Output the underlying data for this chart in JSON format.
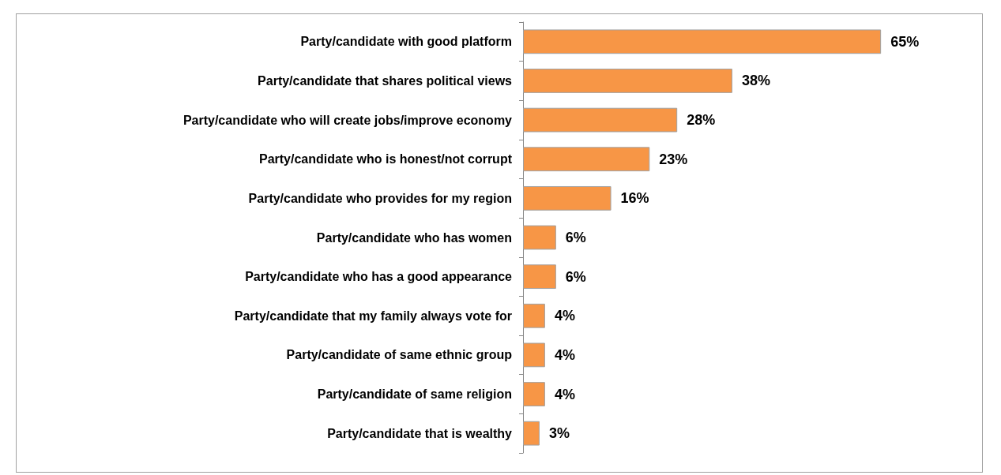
{
  "chart_data": {
    "type": "bar",
    "orientation": "horizontal",
    "categories": [
      "Party/candidate with good platform",
      "Party/candidate that shares political views",
      "Party/candidate who will create jobs/improve economy",
      "Party/candidate who is honest/not corrupt",
      "Party/candidate who provides for my region",
      "Party/candidate who has women",
      "Party/candidate who has a good appearance",
      "Party/candidate that my family always vote for",
      "Party/candidate of same ethnic group",
      "Party/candidate of same religion",
      "Party/candidate that is wealthy"
    ],
    "values": [
      65,
      38,
      28,
      23,
      16,
      6,
      6,
      4,
      4,
      4,
      3
    ],
    "value_labels": [
      "65%",
      "38%",
      "28%",
      "23%",
      "16%",
      "6%",
      "6%",
      "4%",
      "4%",
      "4%",
      "3%"
    ],
    "color": "#f79646"
  }
}
